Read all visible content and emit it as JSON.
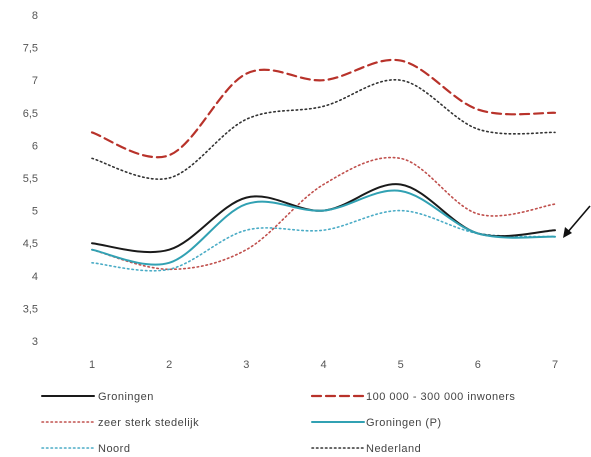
{
  "chart_data": {
    "type": "line",
    "x": [
      1,
      2,
      3,
      4,
      5,
      6,
      7
    ],
    "ylim": [
      3,
      8
    ],
    "yticks": [
      "3",
      "3,5",
      "4",
      "4,5",
      "5",
      "5,5",
      "6",
      "6,5",
      "7",
      "7,5",
      "8"
    ],
    "xticks": [
      "1",
      "2",
      "3",
      "4",
      "5",
      "6",
      "7"
    ],
    "grid": false,
    "legend_position": "bottom",
    "series": [
      {
        "name": "Groningen",
        "values": [
          4.5,
          4.4,
          5.2,
          5.0,
          5.4,
          4.65,
          4.7
        ],
        "color": "#1a1a1a",
        "style": "solid"
      },
      {
        "name": "100 000 - 300 000 inwoners",
        "values": [
          6.2,
          5.85,
          7.1,
          7.0,
          7.3,
          6.55,
          6.5
        ],
        "color": "#b8322a",
        "style": "dashed"
      },
      {
        "name": "zeer sterk stedelijk",
        "values": [
          4.4,
          4.1,
          4.4,
          5.4,
          5.8,
          4.95,
          5.1
        ],
        "color": "#c0504d",
        "style": "dotted"
      },
      {
        "name": "Groningen (P)",
        "values": [
          4.4,
          4.2,
          5.1,
          5.0,
          5.3,
          4.65,
          4.6
        ],
        "color": "#31a1b3",
        "style": "solid"
      },
      {
        "name": "Noord",
        "values": [
          4.2,
          4.1,
          4.7,
          4.7,
          5.0,
          4.65,
          4.6
        ],
        "color": "#4bacc6",
        "style": "dotted"
      },
      {
        "name": "Nederland",
        "values": [
          5.8,
          5.5,
          6.4,
          6.6,
          7.0,
          6.25,
          6.2
        ],
        "color": "#333333",
        "style": "dotted"
      }
    ]
  },
  "annotation": {
    "icon": "arrow-icon"
  }
}
